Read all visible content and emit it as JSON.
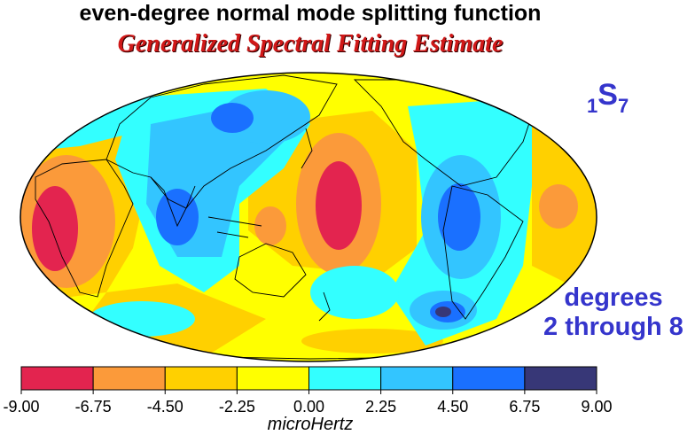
{
  "title": "even-degree normal mode splitting function",
  "subtitle": "Generalized Spectral Fitting Estimate",
  "mode": {
    "prefix": "1",
    "letter": "S",
    "suffix": "7"
  },
  "degrees_label": {
    "line1": "degrees",
    "line2": "2 through 8"
  },
  "colorbar": {
    "ticks": [
      "-9.00",
      "-6.75",
      "-4.50",
      "-2.25",
      "0.00",
      "2.25",
      "4.50",
      "6.75",
      "9.00"
    ],
    "colors": [
      "#e3244f",
      "#fb9a3a",
      "#ffd000",
      "#ffff00",
      "#33ffff",
      "#33c5ff",
      "#1a70ff",
      "#373777"
    ],
    "unit": "microHertz"
  }
}
